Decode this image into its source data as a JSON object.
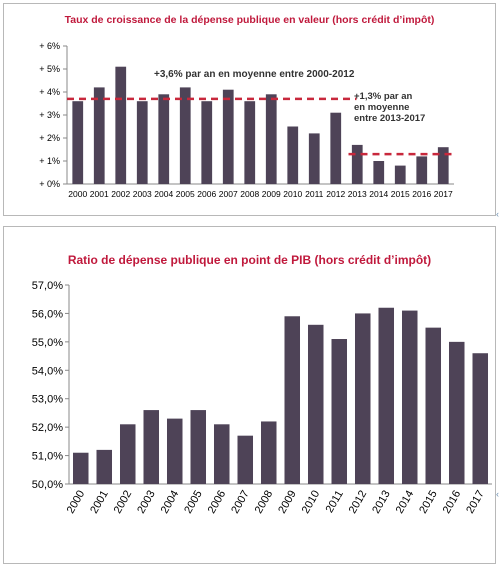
{
  "chart_data": [
    {
      "type": "bar",
      "title": "Taux de croissance de la dépense publique en valeur (hors crédit d’impôt)",
      "categories": [
        "2000",
        "2001",
        "2002",
        "2003",
        "2004",
        "2005",
        "2006",
        "2007",
        "2008",
        "2009",
        "2010",
        "2011",
        "2012",
        "2013",
        "2014",
        "2015",
        "2016",
        "2017"
      ],
      "values": [
        3.6,
        4.2,
        5.1,
        3.6,
        3.9,
        4.2,
        3.6,
        4.1,
        3.6,
        3.9,
        2.5,
        2.2,
        3.1,
        1.7,
        1.0,
        0.8,
        1.2,
        1.6
      ],
      "ylim": [
        0,
        6
      ],
      "yticks": [
        "+ 0%",
        "+ 1%",
        "+ 2%",
        "+ 3%",
        "+ 4%",
        "+ 5%",
        "+ 6%"
      ],
      "bar_color": "#4e4357",
      "reference_lines": [
        {
          "y": 3.7,
          "from": "2000",
          "to": "2012",
          "color": "#c8283c",
          "style": "dashed"
        },
        {
          "y": 1.3,
          "from": "2013",
          "to": "2017",
          "color": "#c8283c",
          "style": "dashed"
        }
      ],
      "annotations": [
        {
          "lines": [
            "+3,6% par an en moyenne entre  2000-2012"
          ]
        },
        {
          "lines": [
            "+1,3% par an",
            "en moyenne",
            "entre  2013-2017"
          ]
        }
      ]
    },
    {
      "type": "bar",
      "title": "Ratio de dépense publique en point de PIB (hors crédit d’impôt)",
      "categories": [
        "2000",
        "2001",
        "2002",
        "2003",
        "2004",
        "2005",
        "2006",
        "2007",
        "2008",
        "2009",
        "2010",
        "2011",
        "2012",
        "2013",
        "2014",
        "2015",
        "2016",
        "2017"
      ],
      "values": [
        51.1,
        51.2,
        52.1,
        52.6,
        52.3,
        52.6,
        52.1,
        51.7,
        52.2,
        55.9,
        55.6,
        55.1,
        56.0,
        56.2,
        56.1,
        55.5,
        55.0,
        54.6
      ],
      "ylim": [
        50,
        57
      ],
      "yticks": [
        "50,0%",
        "51,0%",
        "52,0%",
        "53,0%",
        "54,0%",
        "55,0%",
        "56,0%",
        "57,0%"
      ],
      "bar_color": "#4e4357"
    }
  ]
}
